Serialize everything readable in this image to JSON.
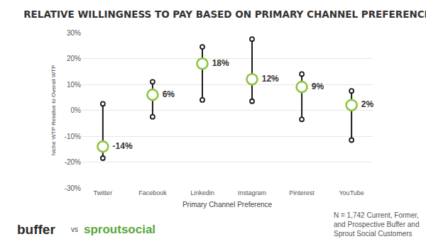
{
  "chart_data": {
    "type": "scatter",
    "title": "RELATIVE WILLINGNESS TO PAY BASED ON PRIMARY CHANNEL PREFERENCE",
    "x_label": "Primary Channel Preference",
    "y_label": "Niche WTP Relative to Overall WTP",
    "categories": [
      "Twitter",
      "Facebook",
      "Linkedin",
      "Instagram",
      "Pinterest",
      "YouTube"
    ],
    "values": [
      -14,
      6,
      18,
      12,
      9,
      2
    ],
    "value_labels": [
      "-14%",
      "6%",
      "18%",
      "12%",
      "9%",
      "2%"
    ],
    "low": [
      -18.5,
      -2.5,
      4,
      3.5,
      -3.5,
      -11.5
    ],
    "high": [
      2.5,
      11,
      24.5,
      27.5,
      14,
      7.5
    ],
    "color": "#8cc63f",
    "marker": "open-circle",
    "data_labels": true,
    "grid": true,
    "ylim": [
      -30,
      30
    ],
    "yticks": [
      {
        "value": -30,
        "label": "-30%"
      },
      {
        "value": -20,
        "label": "-20%"
      },
      {
        "value": -10,
        "label": "-10%"
      },
      {
        "value": 0,
        "label": "0%"
      },
      {
        "value": 10,
        "label": "10%"
      },
      {
        "value": 20,
        "label": "20%"
      },
      {
        "value": 30,
        "label": "30%"
      }
    ],
    "annotations": [
      "buffer",
      "vs",
      "sproutsocial"
    ],
    "note": [
      "N = 1,742 Current, Former,",
      "and Prospective Buffer and",
      "Sprout Social Customers"
    ]
  }
}
